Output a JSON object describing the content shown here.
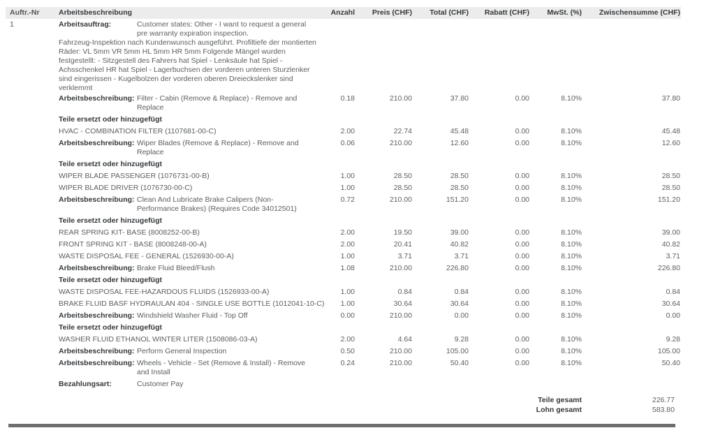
{
  "document": {
    "header": {
      "columns": [
        "Auftr.-Nr",
        "Arbeitsbeschreibung",
        "Anzahl",
        "Preis (CHF)",
        "Total (CHF)",
        "Rabatt (CHF)",
        "MwSt. (%)",
        "Zwischensumme (CHF)"
      ]
    },
    "rows": [
      {
        "type": "labeled",
        "tight": true,
        "order": "1",
        "label": "Arbeitsauftrag:",
        "text": "Customer states: Other - I want to request a general pre warranty expiration inspection.",
        "qty": "",
        "price": "",
        "total": "",
        "discount": "",
        "vat": "",
        "subtotal": ""
      },
      {
        "type": "paragraph",
        "tight": true,
        "text": "Fahrzeug-Inspektion nach Kundenwunsch ausgeführt. Profiltiefe der montierten Räder: VL 5mm VR 5mm HL 5mm HR 5mm Folgende Mängel wurden festgestellt: - Sitzgestell des Fahrers hat Spiel - Lenksäule hat Spiel - Achsschenkel HR hat Spiel - Lagerbuchsen der vorderen unteren Sturzlenker sind eingerissen - Kugelbolzen der vorderen oberen Dreieckslenker sind verklemmt"
      },
      {
        "type": "labeled",
        "label": "Arbeitsbeschreibung:",
        "text": "Filter - Cabin (Remove & Replace) - Remove and Replace",
        "qty": "0.18",
        "price": "210.00",
        "total": "37.80",
        "discount": "0.00",
        "vat": "8.10%",
        "subtotal": "37.80"
      },
      {
        "type": "section",
        "text": "Teile ersetzt oder hinzugefügt"
      },
      {
        "type": "part",
        "text": "HVAC - COMBINATION FILTER (1107681-00-C)",
        "qty": "2.00",
        "price": "22.74",
        "total": "45.48",
        "discount": "0.00",
        "vat": "8.10%",
        "subtotal": "45.48"
      },
      {
        "type": "labeled",
        "label": "Arbeitsbeschreibung:",
        "text": "Wiper Blades (Remove & Replace) - Remove and Replace",
        "qty": "0.06",
        "price": "210.00",
        "total": "12.60",
        "discount": "0.00",
        "vat": "8.10%",
        "subtotal": "12.60"
      },
      {
        "type": "section",
        "text": "Teile ersetzt oder hinzugefügt"
      },
      {
        "type": "part",
        "text": "WIPER BLADE PASSENGER (1076731-00-B)",
        "qty": "1.00",
        "price": "28.50",
        "total": "28.50",
        "discount": "0.00",
        "vat": "8.10%",
        "subtotal": "28.50"
      },
      {
        "type": "part",
        "text": "WIPER BLADE DRIVER (1076730-00-C)",
        "qty": "1.00",
        "price": "28.50",
        "total": "28.50",
        "discount": "0.00",
        "vat": "8.10%",
        "subtotal": "28.50"
      },
      {
        "type": "labeled",
        "label": "Arbeitsbeschreibung:",
        "text": "Clean And Lubricate Brake Calipers (Non-Performance Brakes) (Requires Code 34012501)",
        "qty": "0.72",
        "price": "210.00",
        "total": "151.20",
        "discount": "0.00",
        "vat": "8.10%",
        "subtotal": "151.20"
      },
      {
        "type": "section",
        "text": "Teile ersetzt oder hinzugefügt"
      },
      {
        "type": "part",
        "text": "REAR SPRING KIT- BASE (8008252-00-B)",
        "qty": "2.00",
        "price": "19.50",
        "total": "39.00",
        "discount": "0.00",
        "vat": "8.10%",
        "subtotal": "39.00"
      },
      {
        "type": "part",
        "text": "FRONT SPRING KIT - BASE (8008248-00-A)",
        "qty": "2.00",
        "price": "20.41",
        "total": "40.82",
        "discount": "0.00",
        "vat": "8.10%",
        "subtotal": "40.82"
      },
      {
        "type": "part",
        "text": "WASTE DISPOSAL FEE - GENERAL (1526930-00-A)",
        "qty": "1.00",
        "price": "3.71",
        "total": "3.71",
        "discount": "0.00",
        "vat": "8.10%",
        "subtotal": "3.71"
      },
      {
        "type": "labeled",
        "label": "Arbeitsbeschreibung:",
        "text": "Brake Fluid Bleed/Flush",
        "qty": "1.08",
        "price": "210.00",
        "total": "226.80",
        "discount": "0.00",
        "vat": "8.10%",
        "subtotal": "226.80"
      },
      {
        "type": "section",
        "text": "Teile ersetzt oder hinzugefügt"
      },
      {
        "type": "part",
        "text": "WASTE DISPOSAL FEE-HAZARDOUS FLUIDS (1526933-00-A)",
        "qty": "1.00",
        "price": "0.84",
        "total": "0.84",
        "discount": "0.00",
        "vat": "8.10%",
        "subtotal": "0.84"
      },
      {
        "type": "part",
        "text": "BRAKE FLUID BASF HYDRAULAN 404 - SINGLE USE BOTTLE (1012041-10-C)",
        "qty": "1.00",
        "price": "30.64",
        "total": "30.64",
        "discount": "0.00",
        "vat": "8.10%",
        "subtotal": "30.64"
      },
      {
        "type": "labeled",
        "label": "Arbeitsbeschreibung:",
        "text": "Windshield Washer Fluid - Top Off",
        "qty": "0.00",
        "price": "210.00",
        "total": "0.00",
        "discount": "0.00",
        "vat": "8.10%",
        "subtotal": "0.00"
      },
      {
        "type": "section",
        "text": "Teile ersetzt oder hinzugefügt"
      },
      {
        "type": "part",
        "text": "WASHER FLUID ETHANOL WINTER LITER (1508086-03-A)",
        "qty": "2.00",
        "price": "4.64",
        "total": "9.28",
        "discount": "0.00",
        "vat": "8.10%",
        "subtotal": "9.28"
      },
      {
        "type": "labeled",
        "label": "Arbeitsbeschreibung:",
        "text": "Perform General Inspection",
        "qty": "0.50",
        "price": "210.00",
        "total": "105.00",
        "discount": "0.00",
        "vat": "8.10%",
        "subtotal": "105.00"
      },
      {
        "type": "labeled",
        "label": "Arbeitsbeschreibung:",
        "text": "Wheels - Vehicle - Set (Remove & Install) - Remove and Install",
        "qty": "0.24",
        "price": "210.00",
        "total": "50.40",
        "discount": "0.00",
        "vat": "8.10%",
        "subtotal": "50.40"
      },
      {
        "type": "labeled",
        "label": "Bezahlungsart:",
        "text": "Customer Pay",
        "qty": "",
        "price": "",
        "total": "",
        "discount": "",
        "vat": "",
        "subtotal": ""
      }
    ],
    "totals": [
      {
        "label": "Teile gesamt",
        "value": "226.77"
      },
      {
        "label": "Lohn gesamt",
        "value": "583.80"
      }
    ]
  }
}
